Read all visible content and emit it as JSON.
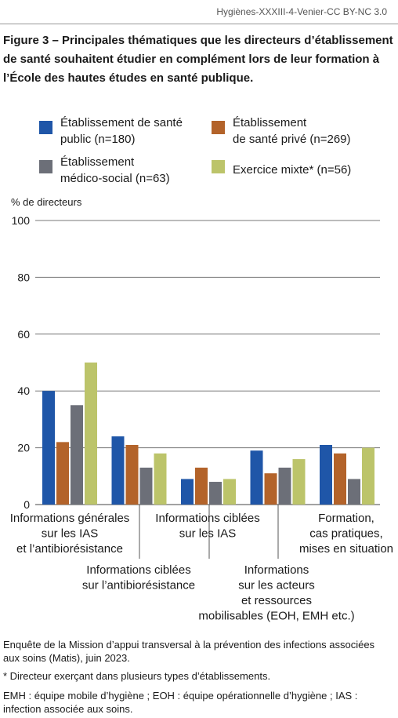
{
  "source_line": "Hygiènes-XXXIII-4-Venier-CC BY-NC 3.0",
  "figure_title": "Figure 3 – Principales thématiques que les directeurs d’établissement de santé souhaitent étudier en complément lors de leur formation à l’École des hautes études en santé publique.",
  "colors": {
    "public": "#1f56a8",
    "prive": "#b3632a",
    "medico": "#6c6f78",
    "mixte": "#bcc46a"
  },
  "legend": [
    {
      "line1": "Établissement de santé",
      "line2": "public (n=180)"
    },
    {
      "line1": "Établissement",
      "line2": "de santé privé (n=269)"
    },
    {
      "line1": "Établissement",
      "line2": "médico-social (n=63)"
    },
    {
      "line1": "Exercice mixte* (n=56)",
      "line2": ""
    }
  ],
  "chart_data": {
    "type": "bar",
    "ylabel": "% de directeurs",
    "ylim": [
      0,
      100
    ],
    "yticks": [
      "0",
      "20",
      "40",
      "60",
      "80",
      "100"
    ],
    "grid": true,
    "categories": [
      [
        "Informations générales",
        "sur les IAS",
        "et l’antibiorésistance"
      ],
      [
        "Informations ciblées",
        "sur l’antibiorésistance"
      ],
      [
        "Informations ciblées",
        "sur les IAS"
      ],
      [
        "Informations",
        "sur les acteurs",
        "et ressources",
        "mobilisables (EOH, EMH etc.)"
      ],
      [
        "Formation,",
        "cas pratiques,",
        "mises en situation"
      ]
    ],
    "series": [
      {
        "name": "Établissement de santé public (n=180)",
        "values": [
          40,
          24,
          9,
          19,
          21
        ]
      },
      {
        "name": "Établissement de santé privé (n=269)",
        "values": [
          22,
          21,
          13,
          11,
          18
        ]
      },
      {
        "name": "Établissement médico-social (n=63)",
        "values": [
          35,
          13,
          8,
          13,
          9
        ]
      },
      {
        "name": "Exercice mixte* (n=56)",
        "values": [
          50,
          18,
          9,
          16,
          20
        ]
      }
    ]
  },
  "footnotes": {
    "source": "Enquête de la Mission d’appui transversal à la prévention des infections associées aux soins (Matis), juin 2023.",
    "asterisk": "* Directeur exerçant dans plusieurs types d’établissements.",
    "abbreviations": "EMH : équipe mobile d’hygiène ; EOH : équipe opérationnelle d’hygiène ; IAS : infection associée aux soins."
  }
}
